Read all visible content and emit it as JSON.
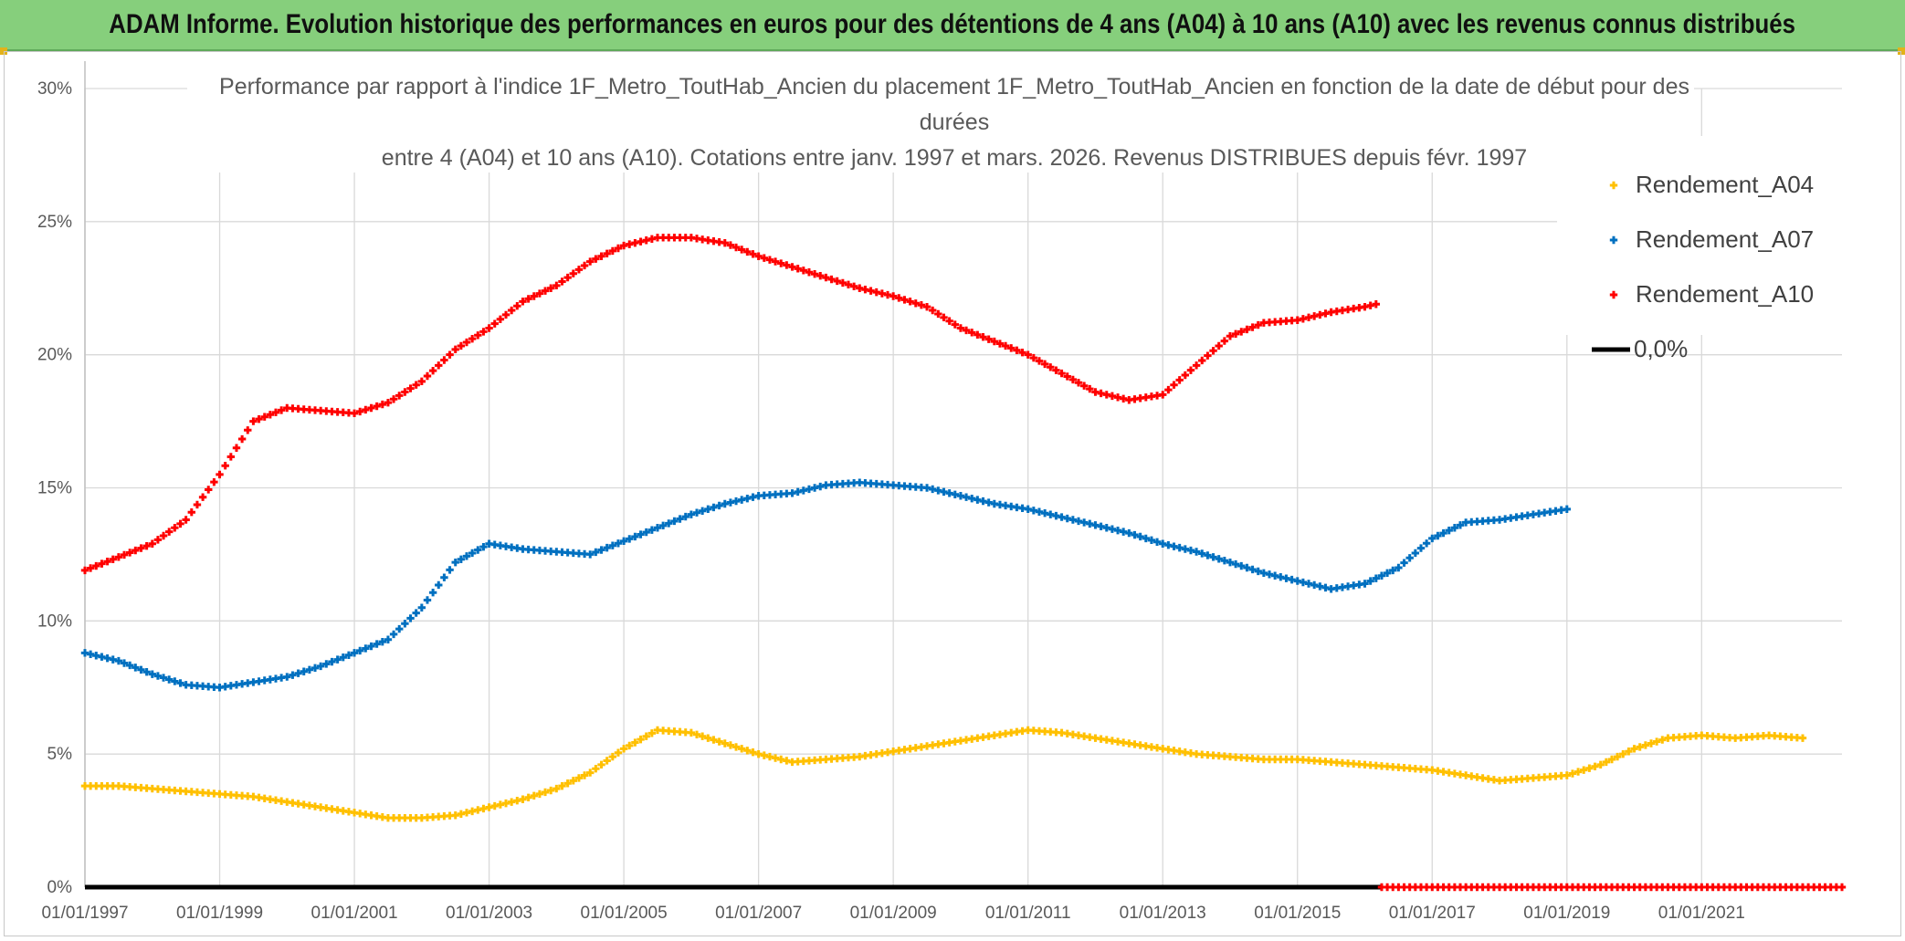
{
  "banner": {
    "title": "ADAM Informe. Evolution historique des performances en euros pour des détentions de 4 ans (A04) à 10 ans (A10) avec les revenus connus distribués"
  },
  "colors": {
    "banner_bg": "#86cf7c",
    "a04": "#ffc000",
    "a07": "#0070c0",
    "a10": "#ff0000",
    "zero": "#000000",
    "grid": "#d9d9d9"
  },
  "chart_data": {
    "type": "scatter",
    "title_lines": [
      "Performance par rapport à l'indice 1F_Metro_ToutHab_Ancien  du placement 1F_Metro_ToutHab_Ancien en fonction de la date de début pour des",
      "durées",
      "entre 4 (A04) et 10 ans (A10). Cotations entre janv. 1997 et mars. 2026. Revenus DISTRIBUES depuis févr. 1997"
    ],
    "xlabel": "",
    "ylabel": "",
    "x_ticks": [
      "01/01/1997",
      "01/01/1999",
      "01/01/2001",
      "01/01/2003",
      "01/01/2005",
      "01/01/2007",
      "01/01/2009",
      "01/01/2011",
      "01/01/2013",
      "01/01/2015",
      "01/01/2017",
      "01/01/2019",
      "01/01/2021"
    ],
    "xlim": [
      "1997-01-01",
      "2023-02-01"
    ],
    "y_ticks": [
      "0%",
      "5%",
      "10%",
      "15%",
      "20%",
      "25%",
      "30%"
    ],
    "ylim": [
      0,
      30
    ],
    "grid": true,
    "legend_position": "right",
    "series": [
      {
        "name": "Rendement_A04",
        "marker": "plus",
        "points": [
          [
            "1997-01-01",
            3.8
          ],
          [
            "1997-07-01",
            3.8
          ],
          [
            "1998-01-01",
            3.7
          ],
          [
            "1998-07-01",
            3.6
          ],
          [
            "1999-01-01",
            3.5
          ],
          [
            "1999-07-01",
            3.4
          ],
          [
            "2000-01-01",
            3.2
          ],
          [
            "2000-07-01",
            3.0
          ],
          [
            "2001-01-01",
            2.8
          ],
          [
            "2001-07-01",
            2.6
          ],
          [
            "2002-01-01",
            2.6
          ],
          [
            "2002-07-01",
            2.7
          ],
          [
            "2003-01-01",
            3.0
          ],
          [
            "2003-07-01",
            3.3
          ],
          [
            "2004-01-01",
            3.7
          ],
          [
            "2004-07-01",
            4.3
          ],
          [
            "2005-01-01",
            5.2
          ],
          [
            "2005-07-01",
            5.9
          ],
          [
            "2006-01-01",
            5.8
          ],
          [
            "2006-07-01",
            5.4
          ],
          [
            "2007-01-01",
            5.0
          ],
          [
            "2007-07-01",
            4.7
          ],
          [
            "2008-01-01",
            4.8
          ],
          [
            "2008-07-01",
            4.9
          ],
          [
            "2009-01-01",
            5.1
          ],
          [
            "2009-07-01",
            5.3
          ],
          [
            "2010-01-01",
            5.5
          ],
          [
            "2010-07-01",
            5.7
          ],
          [
            "2011-01-01",
            5.9
          ],
          [
            "2011-07-01",
            5.8
          ],
          [
            "2012-01-01",
            5.6
          ],
          [
            "2012-07-01",
            5.4
          ],
          [
            "2013-01-01",
            5.2
          ],
          [
            "2013-07-01",
            5.0
          ],
          [
            "2014-01-01",
            4.9
          ],
          [
            "2014-07-01",
            4.8
          ],
          [
            "2015-01-01",
            4.8
          ],
          [
            "2015-07-01",
            4.7
          ],
          [
            "2016-01-01",
            4.6
          ],
          [
            "2016-07-01",
            4.5
          ],
          [
            "2017-01-01",
            4.4
          ],
          [
            "2017-07-01",
            4.2
          ],
          [
            "2018-01-01",
            4.0
          ],
          [
            "2018-07-01",
            4.1
          ],
          [
            "2019-01-01",
            4.2
          ],
          [
            "2019-07-01",
            4.6
          ],
          [
            "2020-01-01",
            5.2
          ],
          [
            "2020-07-01",
            5.6
          ],
          [
            "2021-01-01",
            5.7
          ],
          [
            "2021-07-01",
            5.6
          ],
          [
            "2022-01-01",
            5.7
          ],
          [
            "2022-07-01",
            5.6
          ]
        ]
      },
      {
        "name": "Rendement_A07",
        "marker": "plus",
        "points": [
          [
            "1997-01-01",
            8.8
          ],
          [
            "1997-07-01",
            8.5
          ],
          [
            "1998-01-01",
            8.0
          ],
          [
            "1998-07-01",
            7.6
          ],
          [
            "1999-01-01",
            7.5
          ],
          [
            "1999-07-01",
            7.7
          ],
          [
            "2000-01-01",
            7.9
          ],
          [
            "2000-07-01",
            8.3
          ],
          [
            "2001-01-01",
            8.8
          ],
          [
            "2001-07-01",
            9.3
          ],
          [
            "2002-01-01",
            10.5
          ],
          [
            "2002-07-01",
            12.2
          ],
          [
            "2003-01-01",
            12.9
          ],
          [
            "2003-07-01",
            12.7
          ],
          [
            "2004-01-01",
            12.6
          ],
          [
            "2004-07-01",
            12.5
          ],
          [
            "2005-01-01",
            13.0
          ],
          [
            "2005-07-01",
            13.5
          ],
          [
            "2006-01-01",
            14.0
          ],
          [
            "2006-07-01",
            14.4
          ],
          [
            "2007-01-01",
            14.7
          ],
          [
            "2007-07-01",
            14.8
          ],
          [
            "2008-01-01",
            15.1
          ],
          [
            "2008-07-01",
            15.2
          ],
          [
            "2009-01-01",
            15.1
          ],
          [
            "2009-07-01",
            15.0
          ],
          [
            "2010-01-01",
            14.7
          ],
          [
            "2010-07-01",
            14.4
          ],
          [
            "2011-01-01",
            14.2
          ],
          [
            "2011-07-01",
            13.9
          ],
          [
            "2012-01-01",
            13.6
          ],
          [
            "2012-07-01",
            13.3
          ],
          [
            "2013-01-01",
            12.9
          ],
          [
            "2013-07-01",
            12.6
          ],
          [
            "2014-01-01",
            12.2
          ],
          [
            "2014-07-01",
            11.8
          ],
          [
            "2015-01-01",
            11.5
          ],
          [
            "2015-07-01",
            11.2
          ],
          [
            "2016-01-01",
            11.4
          ],
          [
            "2016-07-01",
            12.0
          ],
          [
            "2017-01-01",
            13.1
          ],
          [
            "2017-07-01",
            13.7
          ],
          [
            "2018-01-01",
            13.8
          ],
          [
            "2018-07-01",
            14.0
          ],
          [
            "2019-01-01",
            14.2
          ]
        ]
      },
      {
        "name": "Rendement_A10",
        "marker": "plus",
        "points": [
          [
            "1997-01-01",
            11.9
          ],
          [
            "1997-07-01",
            12.4
          ],
          [
            "1998-01-01",
            12.9
          ],
          [
            "1998-07-01",
            13.8
          ],
          [
            "1999-01-01",
            15.5
          ],
          [
            "1999-07-01",
            17.5
          ],
          [
            "2000-01-01",
            18.0
          ],
          [
            "2000-07-01",
            17.9
          ],
          [
            "2001-01-01",
            17.8
          ],
          [
            "2001-07-01",
            18.2
          ],
          [
            "2002-01-01",
            19.0
          ],
          [
            "2002-07-01",
            20.2
          ],
          [
            "2003-01-01",
            21.0
          ],
          [
            "2003-07-01",
            22.0
          ],
          [
            "2004-01-01",
            22.6
          ],
          [
            "2004-07-01",
            23.5
          ],
          [
            "2005-01-01",
            24.1
          ],
          [
            "2005-07-01",
            24.4
          ],
          [
            "2006-01-01",
            24.4
          ],
          [
            "2006-07-01",
            24.2
          ],
          [
            "2007-01-01",
            23.7
          ],
          [
            "2007-07-01",
            23.3
          ],
          [
            "2008-01-01",
            22.9
          ],
          [
            "2008-07-01",
            22.5
          ],
          [
            "2009-01-01",
            22.2
          ],
          [
            "2009-07-01",
            21.8
          ],
          [
            "2010-01-01",
            21.0
          ],
          [
            "2010-07-01",
            20.5
          ],
          [
            "2011-01-01",
            20.0
          ],
          [
            "2011-07-01",
            19.3
          ],
          [
            "2012-01-01",
            18.6
          ],
          [
            "2012-07-01",
            18.3
          ],
          [
            "2013-01-01",
            18.5
          ],
          [
            "2013-07-01",
            19.6
          ],
          [
            "2014-01-01",
            20.7
          ],
          [
            "2014-07-01",
            21.2
          ],
          [
            "2015-01-01",
            21.3
          ],
          [
            "2015-07-01",
            21.6
          ],
          [
            "2016-01-01",
            21.8
          ],
          [
            "2016-03-01",
            21.9
          ]
        ],
        "zero_points_from": "2016-04-01",
        "zero_points_to": "2023-02-01",
        "zero_value": 0
      },
      {
        "name": "0,0%",
        "marker": "line",
        "points": [
          [
            "1997-01-01",
            0
          ],
          [
            "2016-04-01",
            0
          ]
        ]
      }
    ]
  }
}
